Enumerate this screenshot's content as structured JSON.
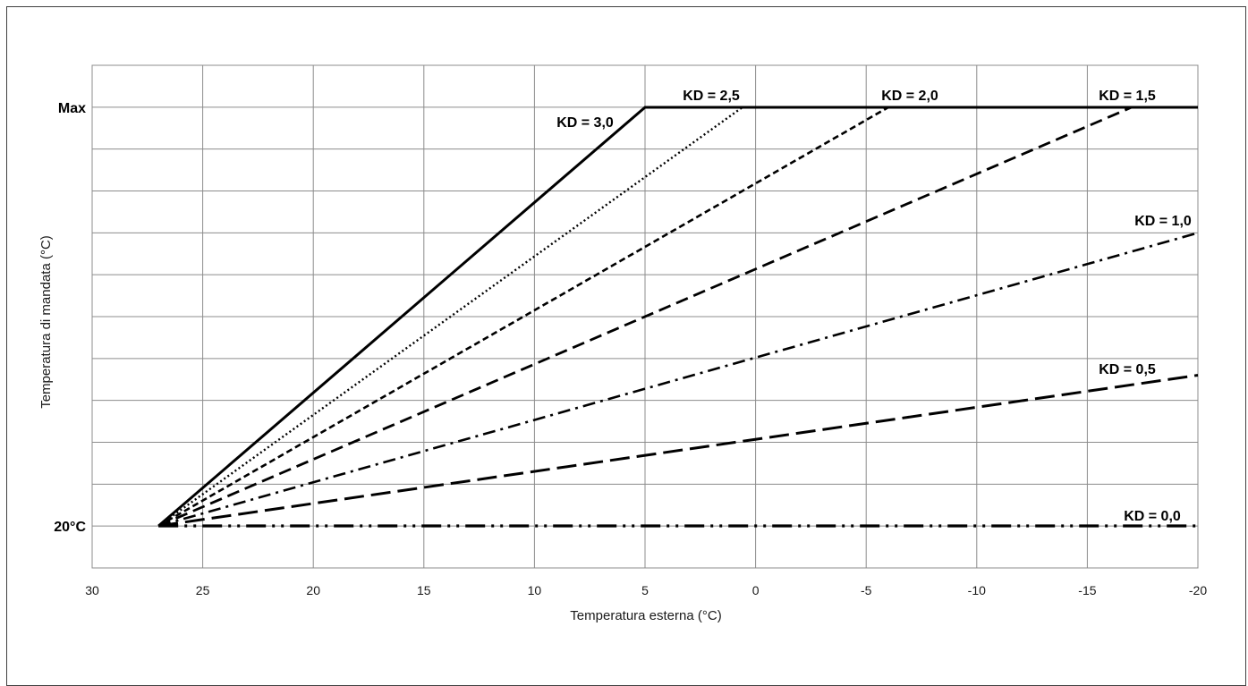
{
  "chart_data": {
    "type": "line",
    "xlabel": "Temperatura esterna (°C)",
    "ylabel": "Temperatura di mandata (°C)",
    "xlim": [
      30,
      -20
    ],
    "x_ticks": [
      "30",
      "25",
      "20",
      "15",
      "10",
      "5",
      "0",
      "-5",
      "-10",
      "-15",
      "-20"
    ],
    "y_ticks": [
      "Max",
      "20°C"
    ],
    "y_units": "fraction from 20°C (0) to Max (1)",
    "ylim": [
      -0.1,
      1.1
    ],
    "grid": true,
    "legend": "none",
    "series": [
      {
        "name": "KD = 3,0",
        "style": "solid",
        "points": [
          [
            27,
            0
          ],
          [
            5,
            1
          ],
          [
            -20,
            1
          ]
        ]
      },
      {
        "name": "KD = 2,5",
        "style": "dotted",
        "points": [
          [
            27,
            0
          ],
          [
            0.6,
            1
          ]
        ]
      },
      {
        "name": "KD = 2,0",
        "style": "short-dash",
        "points": [
          [
            27,
            0
          ],
          [
            -6,
            1
          ]
        ]
      },
      {
        "name": "KD = 1,5",
        "style": "dash",
        "points": [
          [
            27,
            0
          ],
          [
            -17,
            1
          ]
        ]
      },
      {
        "name": "KD = 1,0",
        "style": "dash-dot",
        "points": [
          [
            27,
            0
          ],
          [
            -20,
            0.7
          ]
        ]
      },
      {
        "name": "KD = 0,5",
        "style": "long-dash",
        "points": [
          [
            27,
            0
          ],
          [
            -20,
            0.36
          ]
        ]
      },
      {
        "name": "KD = 0,0",
        "style": "dash-dot-dot",
        "points": [
          [
            27,
            0
          ],
          [
            -20,
            0
          ]
        ]
      }
    ]
  }
}
